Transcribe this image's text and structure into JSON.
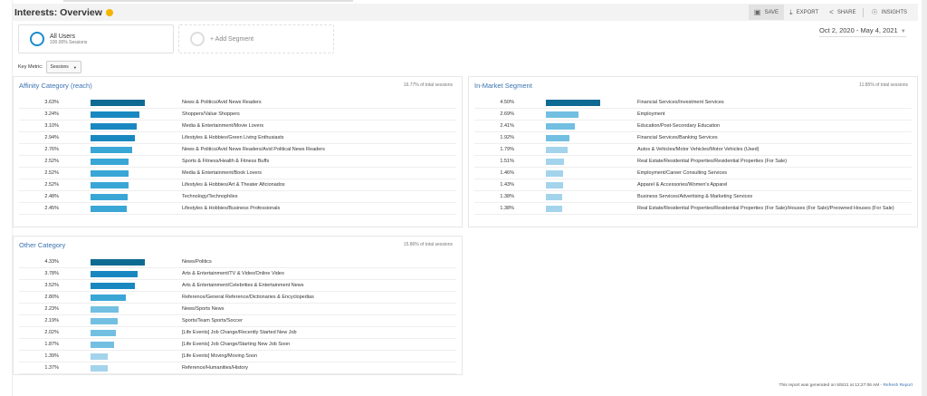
{
  "header": {
    "title": "Interests: Overview",
    "tools": [
      {
        "icon": "save-icon",
        "label": "SAVE"
      },
      {
        "icon": "export-icon",
        "label": "EXPORT"
      },
      {
        "icon": "share-icon",
        "label": "SHARE"
      },
      {
        "icon": "insights-icon",
        "label": "INSIGHTS"
      }
    ]
  },
  "segments": {
    "all_users": "All Users",
    "all_users_sub": "100.00% Sessions",
    "add": "+ Add Segment"
  },
  "date_range": "Oct 2, 2020 - May 4, 2021",
  "key_metric": {
    "label": "Key Metric:",
    "value": "Sessions"
  },
  "colors": {
    "dark": "#0e6a93",
    "mid": "#1a8ac4",
    "light": "#a3d4ec",
    "link": "#3a73b0"
  },
  "panels": {
    "affinity": {
      "title": "Affinity Category (reach)",
      "total": "16.77% of total sessions",
      "rows": [
        {
          "pct": "3.63%",
          "value": 3.63,
          "label": "News & Politics/Avid News Readers"
        },
        {
          "pct": "3.24%",
          "value": 3.24,
          "label": "Shoppers/Value Shoppers"
        },
        {
          "pct": "3.10%",
          "value": 3.1,
          "label": "Media & Entertainment/Movie Lovers"
        },
        {
          "pct": "2.94%",
          "value": 2.94,
          "label": "Lifestyles & Hobbies/Green Living Enthusiasts"
        },
        {
          "pct": "2.76%",
          "value": 2.76,
          "label": "News & Politics/Avid News Readers/Avid Political News Readers"
        },
        {
          "pct": "2.52%",
          "value": 2.52,
          "label": "Sports & Fitness/Health & Fitness Buffs"
        },
        {
          "pct": "2.52%",
          "value": 2.52,
          "label": "Media & Entertainment/Book Lovers"
        },
        {
          "pct": "2.52%",
          "value": 2.52,
          "label": "Lifestyles & Hobbies/Art & Theater Aficionados"
        },
        {
          "pct": "2.48%",
          "value": 2.48,
          "label": "Technology/Technophiles"
        },
        {
          "pct": "2.45%",
          "value": 2.45,
          "label": "Lifestyles & Hobbies/Business Professionals"
        }
      ]
    },
    "in_market": {
      "title": "In-Market Segment",
      "total": "11.85% of total sessions",
      "rows": [
        {
          "pct": "4.50%",
          "value": 4.5,
          "label": "Financial Services/Investment Services"
        },
        {
          "pct": "2.69%",
          "value": 2.69,
          "label": "Employment"
        },
        {
          "pct": "2.41%",
          "value": 2.41,
          "label": "Education/Post-Secondary Education"
        },
        {
          "pct": "1.92%",
          "value": 1.92,
          "label": "Financial Services/Banking Services"
        },
        {
          "pct": "1.79%",
          "value": 1.79,
          "label": "Autos & Vehicles/Motor Vehicles/Motor Vehicles (Used)"
        },
        {
          "pct": "1.51%",
          "value": 1.51,
          "label": "Real Estate/Residential Properties/Residential Properties (For Sale)"
        },
        {
          "pct": "1.46%",
          "value": 1.46,
          "label": "Employment/Career Consulting Services"
        },
        {
          "pct": "1.43%",
          "value": 1.43,
          "label": "Apparel & Accessories/Women's Apparel"
        },
        {
          "pct": "1.38%",
          "value": 1.38,
          "label": "Business Services/Advertising & Marketing Services"
        },
        {
          "pct": "1.38%",
          "value": 1.38,
          "label": "Real Estate/Residential Properties/Residential Properties (For Sale)/Houses (For Sale)/Preowned Houses (For Sale)"
        }
      ]
    },
    "other": {
      "title": "Other Category",
      "total": "15.86% of total sessions",
      "rows": [
        {
          "pct": "4.33%",
          "value": 4.33,
          "label": "News/Politics"
        },
        {
          "pct": "3.78%",
          "value": 3.78,
          "label": "Arts & Entertainment/TV & Video/Online Video"
        },
        {
          "pct": "3.52%",
          "value": 3.52,
          "label": "Arts & Entertainment/Celebrities & Entertainment News"
        },
        {
          "pct": "2.80%",
          "value": 2.8,
          "label": "Reference/General Reference/Dictionaries & Encyclopedias"
        },
        {
          "pct": "2.23%",
          "value": 2.23,
          "label": "News/Sports News"
        },
        {
          "pct": "2.19%",
          "value": 2.19,
          "label": "Sports/Team Sports/Soccer"
        },
        {
          "pct": "2.02%",
          "value": 2.02,
          "label": "[Life Events] Job Change/Recently Started New Job"
        },
        {
          "pct": "1.87%",
          "value": 1.87,
          "label": "[Life Events] Job Change/Starting New Job Soon"
        },
        {
          "pct": "1.39%",
          "value": 1.39,
          "label": "[Life Events] Moving/Moving Soon"
        },
        {
          "pct": "1.37%",
          "value": 1.37,
          "label": "Reference/Humanities/History"
        }
      ]
    }
  },
  "footer": {
    "text": "This report was generated on 5/5/21 at 12:27:06 AM - ",
    "link": "Refresh Report"
  }
}
